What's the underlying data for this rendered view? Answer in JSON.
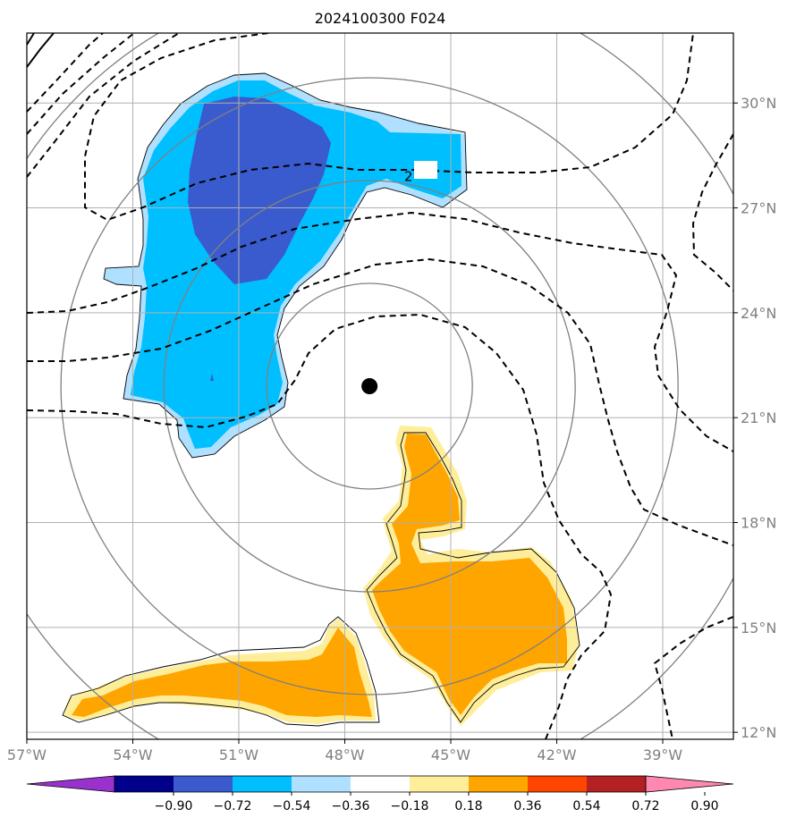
{
  "title": "2024100300 F024",
  "map": {
    "lon_range": [
      -57,
      -37
    ],
    "lat_range": [
      11.8,
      32
    ],
    "lon_ticks": [
      {
        "value": -57,
        "label": "57°W"
      },
      {
        "value": -54,
        "label": "54°W"
      },
      {
        "value": -51,
        "label": "51°W"
      },
      {
        "value": -48,
        "label": "48°W"
      },
      {
        "value": -45,
        "label": "45°W"
      },
      {
        "value": -42,
        "label": "42°W"
      },
      {
        "value": -39,
        "label": "39°W"
      }
    ],
    "lat_ticks": [
      {
        "value": 30,
        "label": "30°N"
      },
      {
        "value": 27,
        "label": "27°N"
      },
      {
        "value": 24,
        "label": "24°N"
      },
      {
        "value": 21,
        "label": "21°N"
      },
      {
        "value": 18,
        "label": "18°N"
      },
      {
        "value": 15,
        "label": "15°N"
      },
      {
        "value": 12,
        "label": "12°N"
      }
    ],
    "gridlines": true,
    "storm_center": {
      "lon": -47.3,
      "lat": 21.9
    },
    "range_ring_count": 4,
    "contour_label": "2",
    "contour_label_position": {
      "lon": -46.2,
      "lat": 27.9
    }
  },
  "colorbar": {
    "levels": [
      "−0.90",
      "−0.72",
      "−0.54",
      "−0.36",
      "−0.18",
      "0.18",
      "0.36",
      "0.54",
      "0.72",
      "0.90"
    ],
    "colors": [
      "#9932cc",
      "#00008b",
      "#3a5bcd",
      "#00bfff",
      "#b0e0ff",
      "#ffffff",
      "#ffee99",
      "#ffa500",
      "#ff4500",
      "#b22222",
      "#ff88b0"
    ],
    "extend": "both"
  }
}
